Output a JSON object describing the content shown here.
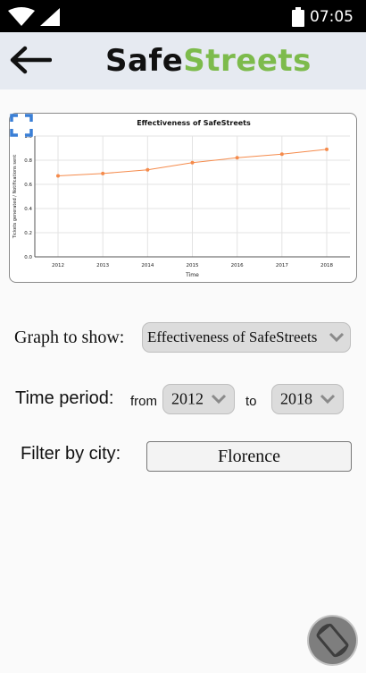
{
  "status_bar": {
    "time": "07:05",
    "icons": [
      "wifi-icon",
      "signal-icon",
      "battery-icon"
    ]
  },
  "app_bar": {
    "logo_part1": "Safe",
    "logo_part2": "Streets",
    "back_icon": "arrow-left-icon"
  },
  "chart_data": {
    "type": "line",
    "title": "Effectiveness of SafeStreets",
    "xlabel": "Time",
    "ylabel": "Tickets generated / Notifications sent",
    "categories": [
      "2012",
      "2013",
      "2014",
      "2015",
      "2016",
      "2017",
      "2018"
    ],
    "values": [
      0.67,
      0.69,
      0.72,
      0.78,
      0.82,
      0.85,
      0.89
    ],
    "ylim": [
      0.0,
      1.0
    ],
    "yticks": [
      "0.0",
      "0.2",
      "0.4",
      "0.6",
      "0.8",
      "1.0"
    ],
    "grid": true,
    "line_color": "#f58b4c"
  },
  "controls": {
    "graph_label": "Graph to show:",
    "graph_value": "Effectiveness of SafeStreets",
    "period_label": "Time period:",
    "from_label": "from",
    "from_value": "2012",
    "to_label": "to",
    "to_value": "2018",
    "city_label": "Filter by city:",
    "city_value": "Florence"
  },
  "colors": {
    "accent": "#7dbb4c",
    "appbar": "#e6eaf1",
    "fullscreen": "#3a7fd6"
  }
}
